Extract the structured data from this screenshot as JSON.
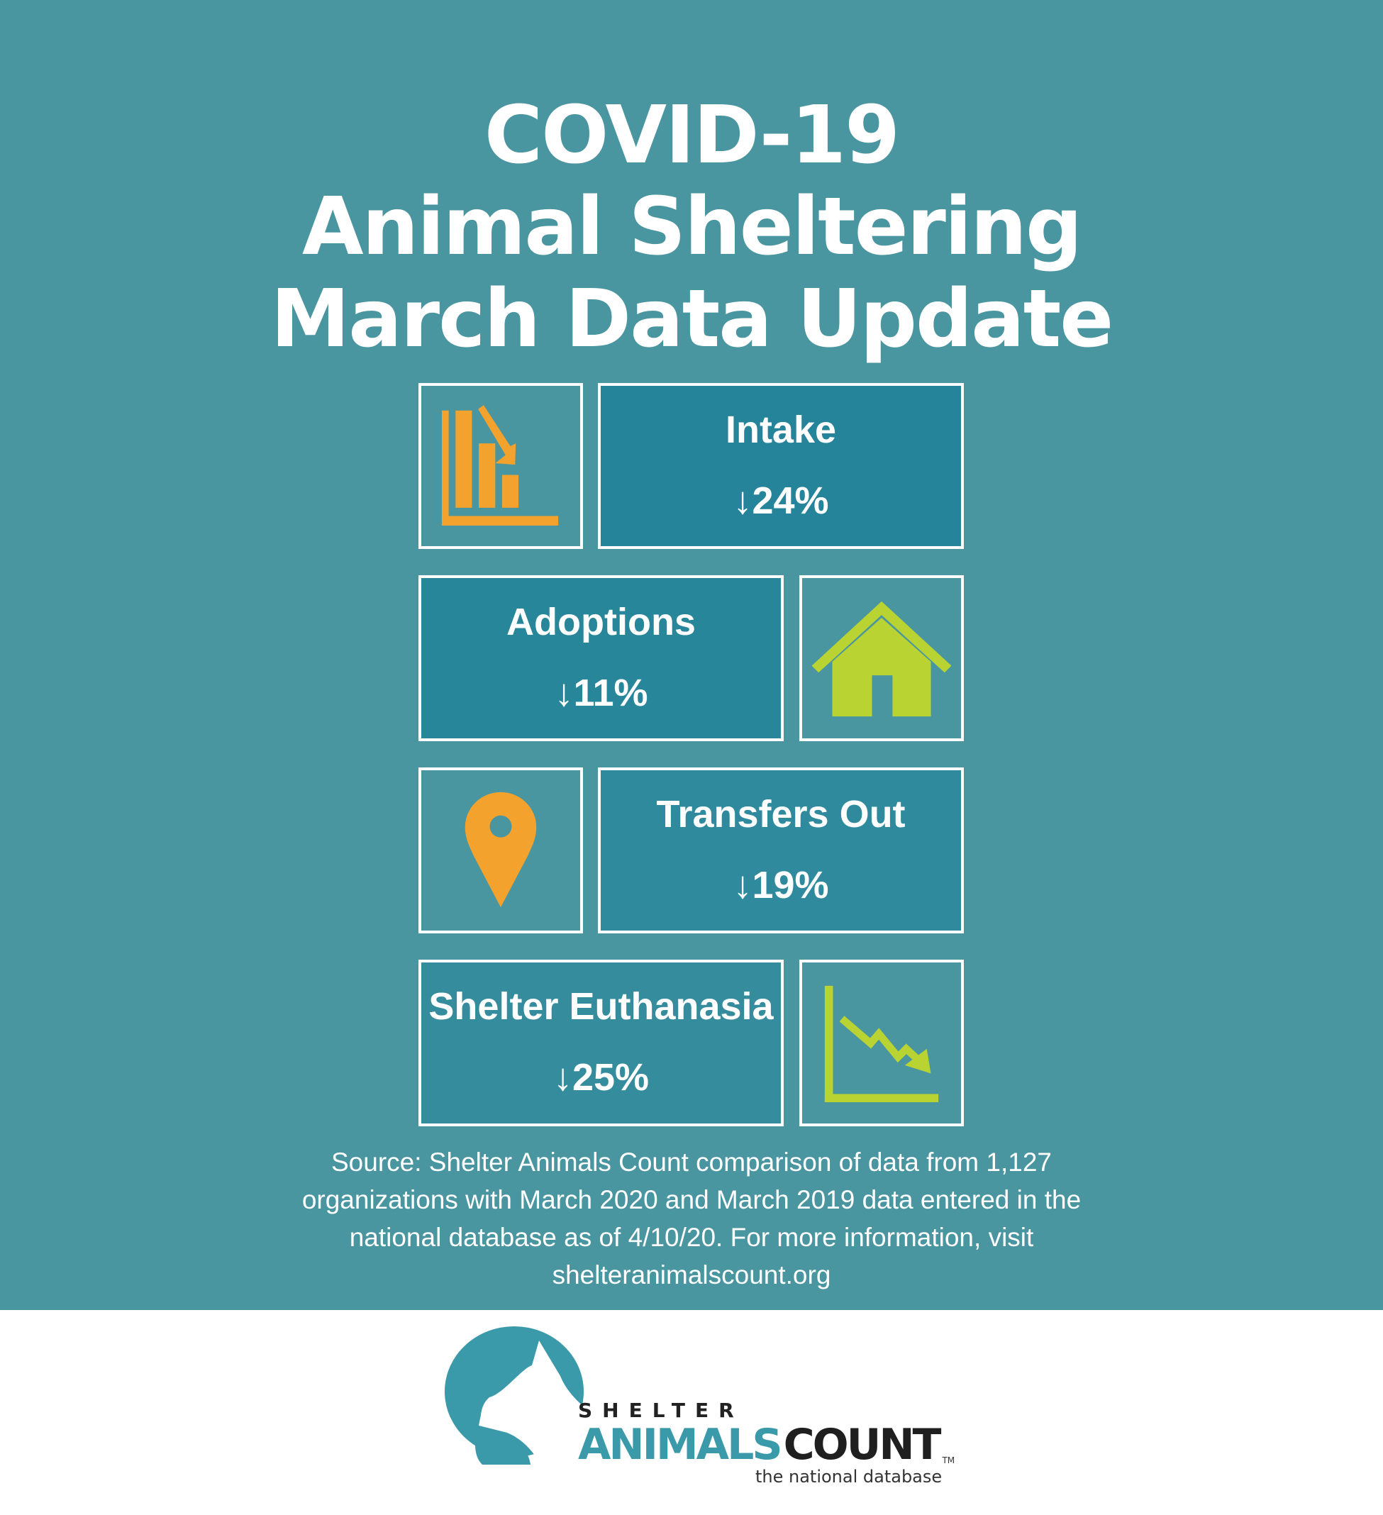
{
  "title": {
    "line1": "COVID-19",
    "line2": "Animal Sheltering",
    "line3": "March Data Update"
  },
  "metrics": [
    {
      "label": "Intake",
      "change": "↓24%",
      "icon": "bar-chart-down-icon",
      "icon_color": "#F4A22E"
    },
    {
      "label": "Adoptions",
      "change": "↓11%",
      "icon": "house-icon",
      "icon_color": "#B9D332"
    },
    {
      "label": "Transfers Out",
      "change": "↓19%",
      "icon": "map-pin-icon",
      "icon_color": "#F4A22E"
    },
    {
      "label": "Shelter Euthanasia",
      "change": "↓25%",
      "icon": "line-chart-down-icon",
      "icon_color": "#B9D332"
    }
  ],
  "source": {
    "line1": "Source: Shelter Animals Count comparison of data from 1,127",
    "line2": "organizations with March 2020 and March 2019 data entered in the",
    "line3": "national database as of 4/10/20. For more information, visit",
    "line4": "shelteranimalscount.org"
  },
  "logo": {
    "shelter": "SHELTER",
    "animals": "ANIMALS",
    "count": "COUNT",
    "tm": "TM",
    "tagline": "the national database"
  },
  "colors": {
    "background": "#4995A0",
    "box_fill": "#25849A",
    "orange": "#F4A22E",
    "green": "#B9D332"
  }
}
